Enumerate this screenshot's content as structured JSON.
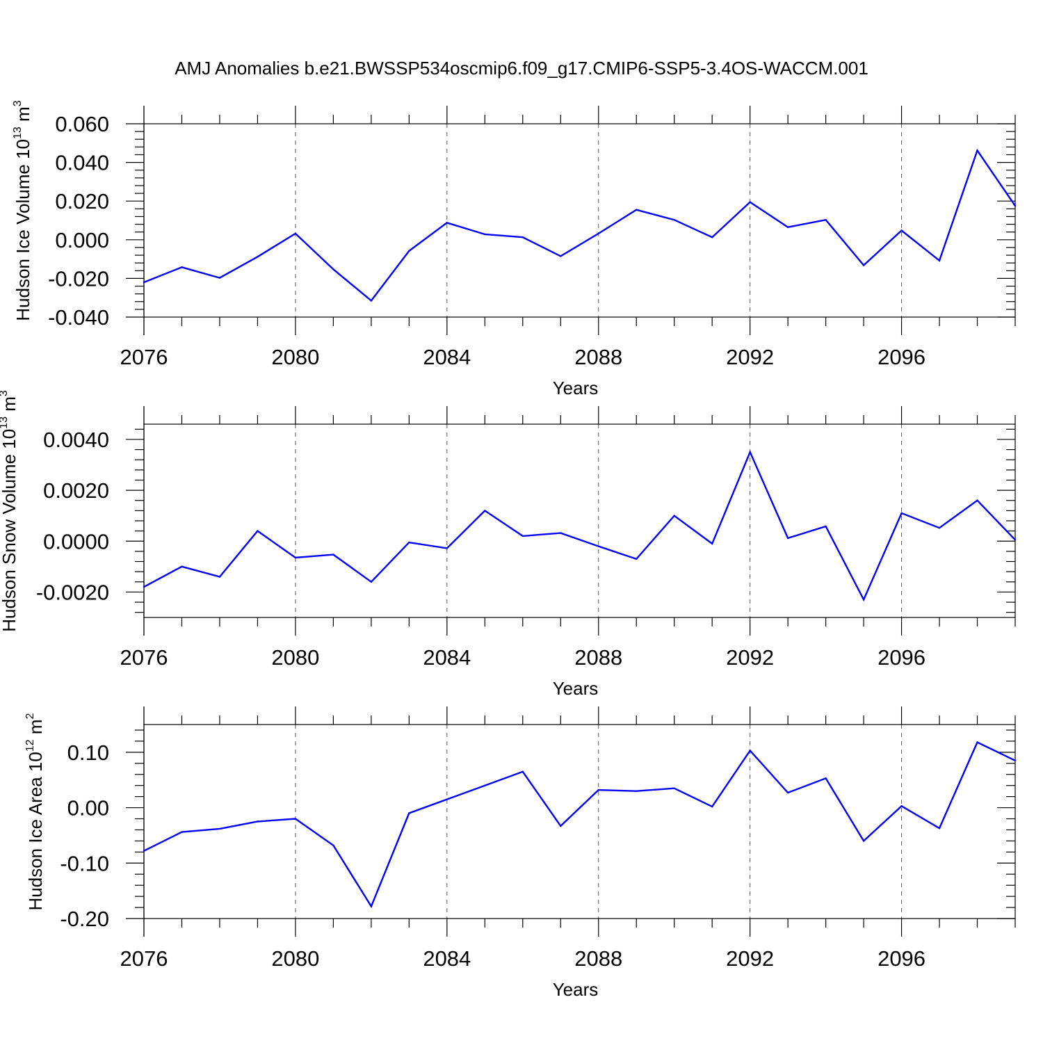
{
  "figure": {
    "title": "AMJ Anomalies b.e21.BWSSP534oscmip6.f09_g17.CMIP6-SSP5-3.4OS-WACCM.001"
  },
  "colors": {
    "series": "#0000ff",
    "axis": "#000000",
    "grid": "#555555"
  },
  "chart_data": [
    {
      "type": "line",
      "title": "",
      "ylabel": {
        "base": "Hudson Ice Volume 10",
        "sup": "13",
        "unit": " m",
        "unit_sup": "3"
      },
      "xlabel": "Years",
      "xlim": [
        2076,
        2099
      ],
      "ylim": [
        -0.04,
        0.06
      ],
      "x_ticks": [
        "2076",
        "2080",
        "2084",
        "2088",
        "2092",
        "2096"
      ],
      "y_ticks": [
        "-0.040",
        "-0.020",
        "0.000",
        "0.020",
        "0.040",
        "0.060"
      ],
      "grid": "vertical dashed at major x ticks",
      "x": [
        2076,
        2077,
        2078,
        2079,
        2080,
        2081,
        2082,
        2083,
        2084,
        2085,
        2086,
        2087,
        2088,
        2089,
        2090,
        2091,
        2092,
        2093,
        2094,
        2095,
        2096,
        2097,
        2098,
        2099
      ],
      "values": [
        -0.022,
        -0.0142,
        -0.0197,
        -0.0088,
        0.0032,
        -0.0153,
        -0.0315,
        -0.0058,
        0.0088,
        0.0028,
        0.0013,
        -0.0085,
        0.0032,
        0.0155,
        0.0103,
        0.0013,
        0.0195,
        0.0065,
        0.0103,
        -0.0132,
        0.0048,
        -0.0108,
        0.0462,
        0.0175
      ]
    },
    {
      "type": "line",
      "title": "",
      "ylabel": {
        "base": "Hudson Snow Volume 10",
        "sup": "13",
        "unit": " m",
        "unit_sup": "3"
      },
      "xlabel": "Years",
      "xlim": [
        2076,
        2099
      ],
      "ylim": [
        -0.003,
        0.0046
      ],
      "x_ticks": [
        "2076",
        "2080",
        "2084",
        "2088",
        "2092",
        "2096"
      ],
      "y_ticks": [
        "-0.0020",
        "0.0000",
        "0.0020",
        "0.0040"
      ],
      "grid": "vertical dashed at major x ticks",
      "x": [
        2076,
        2077,
        2078,
        2079,
        2080,
        2081,
        2082,
        2083,
        2084,
        2085,
        2086,
        2087,
        2088,
        2089,
        2090,
        2091,
        2092,
        2093,
        2094,
        2095,
        2096,
        2097,
        2098,
        2099
      ],
      "values": [
        -0.0018,
        -0.001,
        -0.0014,
        0.0004,
        -0.00065,
        -0.00053,
        -0.0016,
        -5e-05,
        -0.00028,
        0.0012,
        0.0002,
        0.00032,
        -0.0002,
        -0.0007,
        0.001,
        -0.0001,
        0.0035,
        0.00012,
        0.00058,
        -0.0023,
        0.0011,
        0.00052,
        0.0016,
        5e-05
      ]
    },
    {
      "type": "line",
      "title": "",
      "ylabel": {
        "base": "Hudson Ice Area 10",
        "sup": "12",
        "unit": " m",
        "unit_sup": "2"
      },
      "xlabel": "Years",
      "xlim": [
        2076,
        2099
      ],
      "ylim": [
        -0.2,
        0.15
      ],
      "x_ticks": [
        "2076",
        "2080",
        "2084",
        "2088",
        "2092",
        "2096"
      ],
      "y_ticks": [
        "-0.20",
        "-0.10",
        "0.00",
        "0.10"
      ],
      "grid": "vertical dashed at major x ticks",
      "x": [
        2076,
        2077,
        2078,
        2079,
        2080,
        2081,
        2082,
        2083,
        2084,
        2085,
        2086,
        2087,
        2088,
        2089,
        2090,
        2091,
        2092,
        2093,
        2094,
        2095,
        2096,
        2097,
        2098,
        2099
      ],
      "values": [
        -0.078,
        -0.044,
        -0.038,
        -0.025,
        -0.02,
        -0.068,
        -0.178,
        -0.01,
        0.015,
        0.04,
        0.065,
        -0.033,
        0.032,
        0.03,
        0.035,
        0.002,
        0.103,
        0.027,
        0.053,
        -0.06,
        0.003,
        -0.037,
        0.118,
        0.085
      ]
    }
  ]
}
